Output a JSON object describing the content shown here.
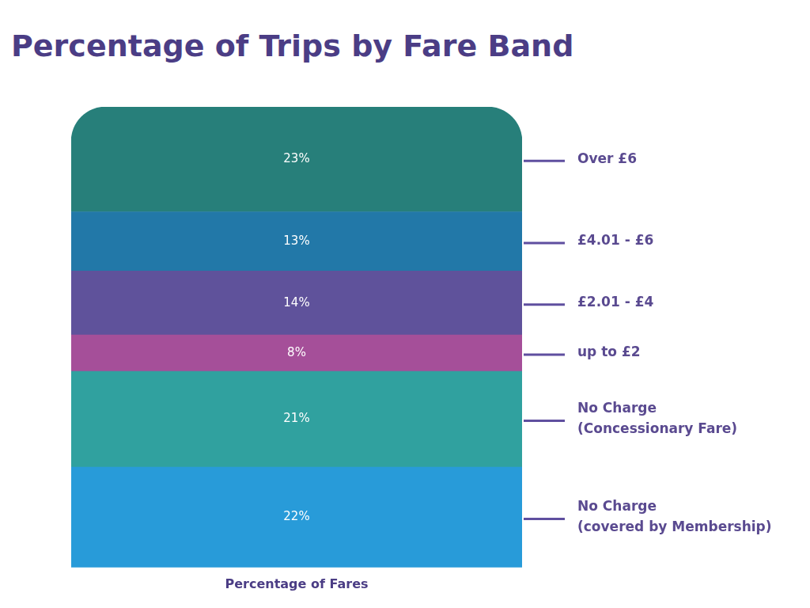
{
  "chart_data": {
    "type": "bar",
    "title": "Percentage of Trips by Fare Band",
    "categories": [
      "Percentage of Fares"
    ],
    "series": [
      {
        "name": "No Charge (covered by Membership)",
        "color": "#289bd9",
        "values": [
          22
        ],
        "value_labels": [
          "22%"
        ]
      },
      {
        "name": "No Charge (Concessionary Fare)",
        "color": "#30a19f",
        "values": [
          21
        ],
        "value_labels": [
          "21%"
        ]
      },
      {
        "name": "up to £2",
        "color": "#a54f99",
        "values": [
          8
        ],
        "value_labels": [
          "8%"
        ]
      },
      {
        "name": "£2.01 - £4",
        "color": "#5f529b",
        "values": [
          14
        ],
        "value_labels": [
          "14%"
        ]
      },
      {
        "name": "£4.01 - £6",
        "color": "#2278a8",
        "values": [
          13
        ],
        "value_labels": [
          "13%"
        ]
      },
      {
        "name": "Over £6",
        "color": "#277f7a",
        "values": [
          23
        ],
        "value_labels": [
          "23%"
        ]
      }
    ],
    "stacked": true,
    "data_labels": true,
    "legend": "right",
    "tick_labels": "x",
    "grid": false,
    "ylim": [
      0,
      101
    ]
  }
}
